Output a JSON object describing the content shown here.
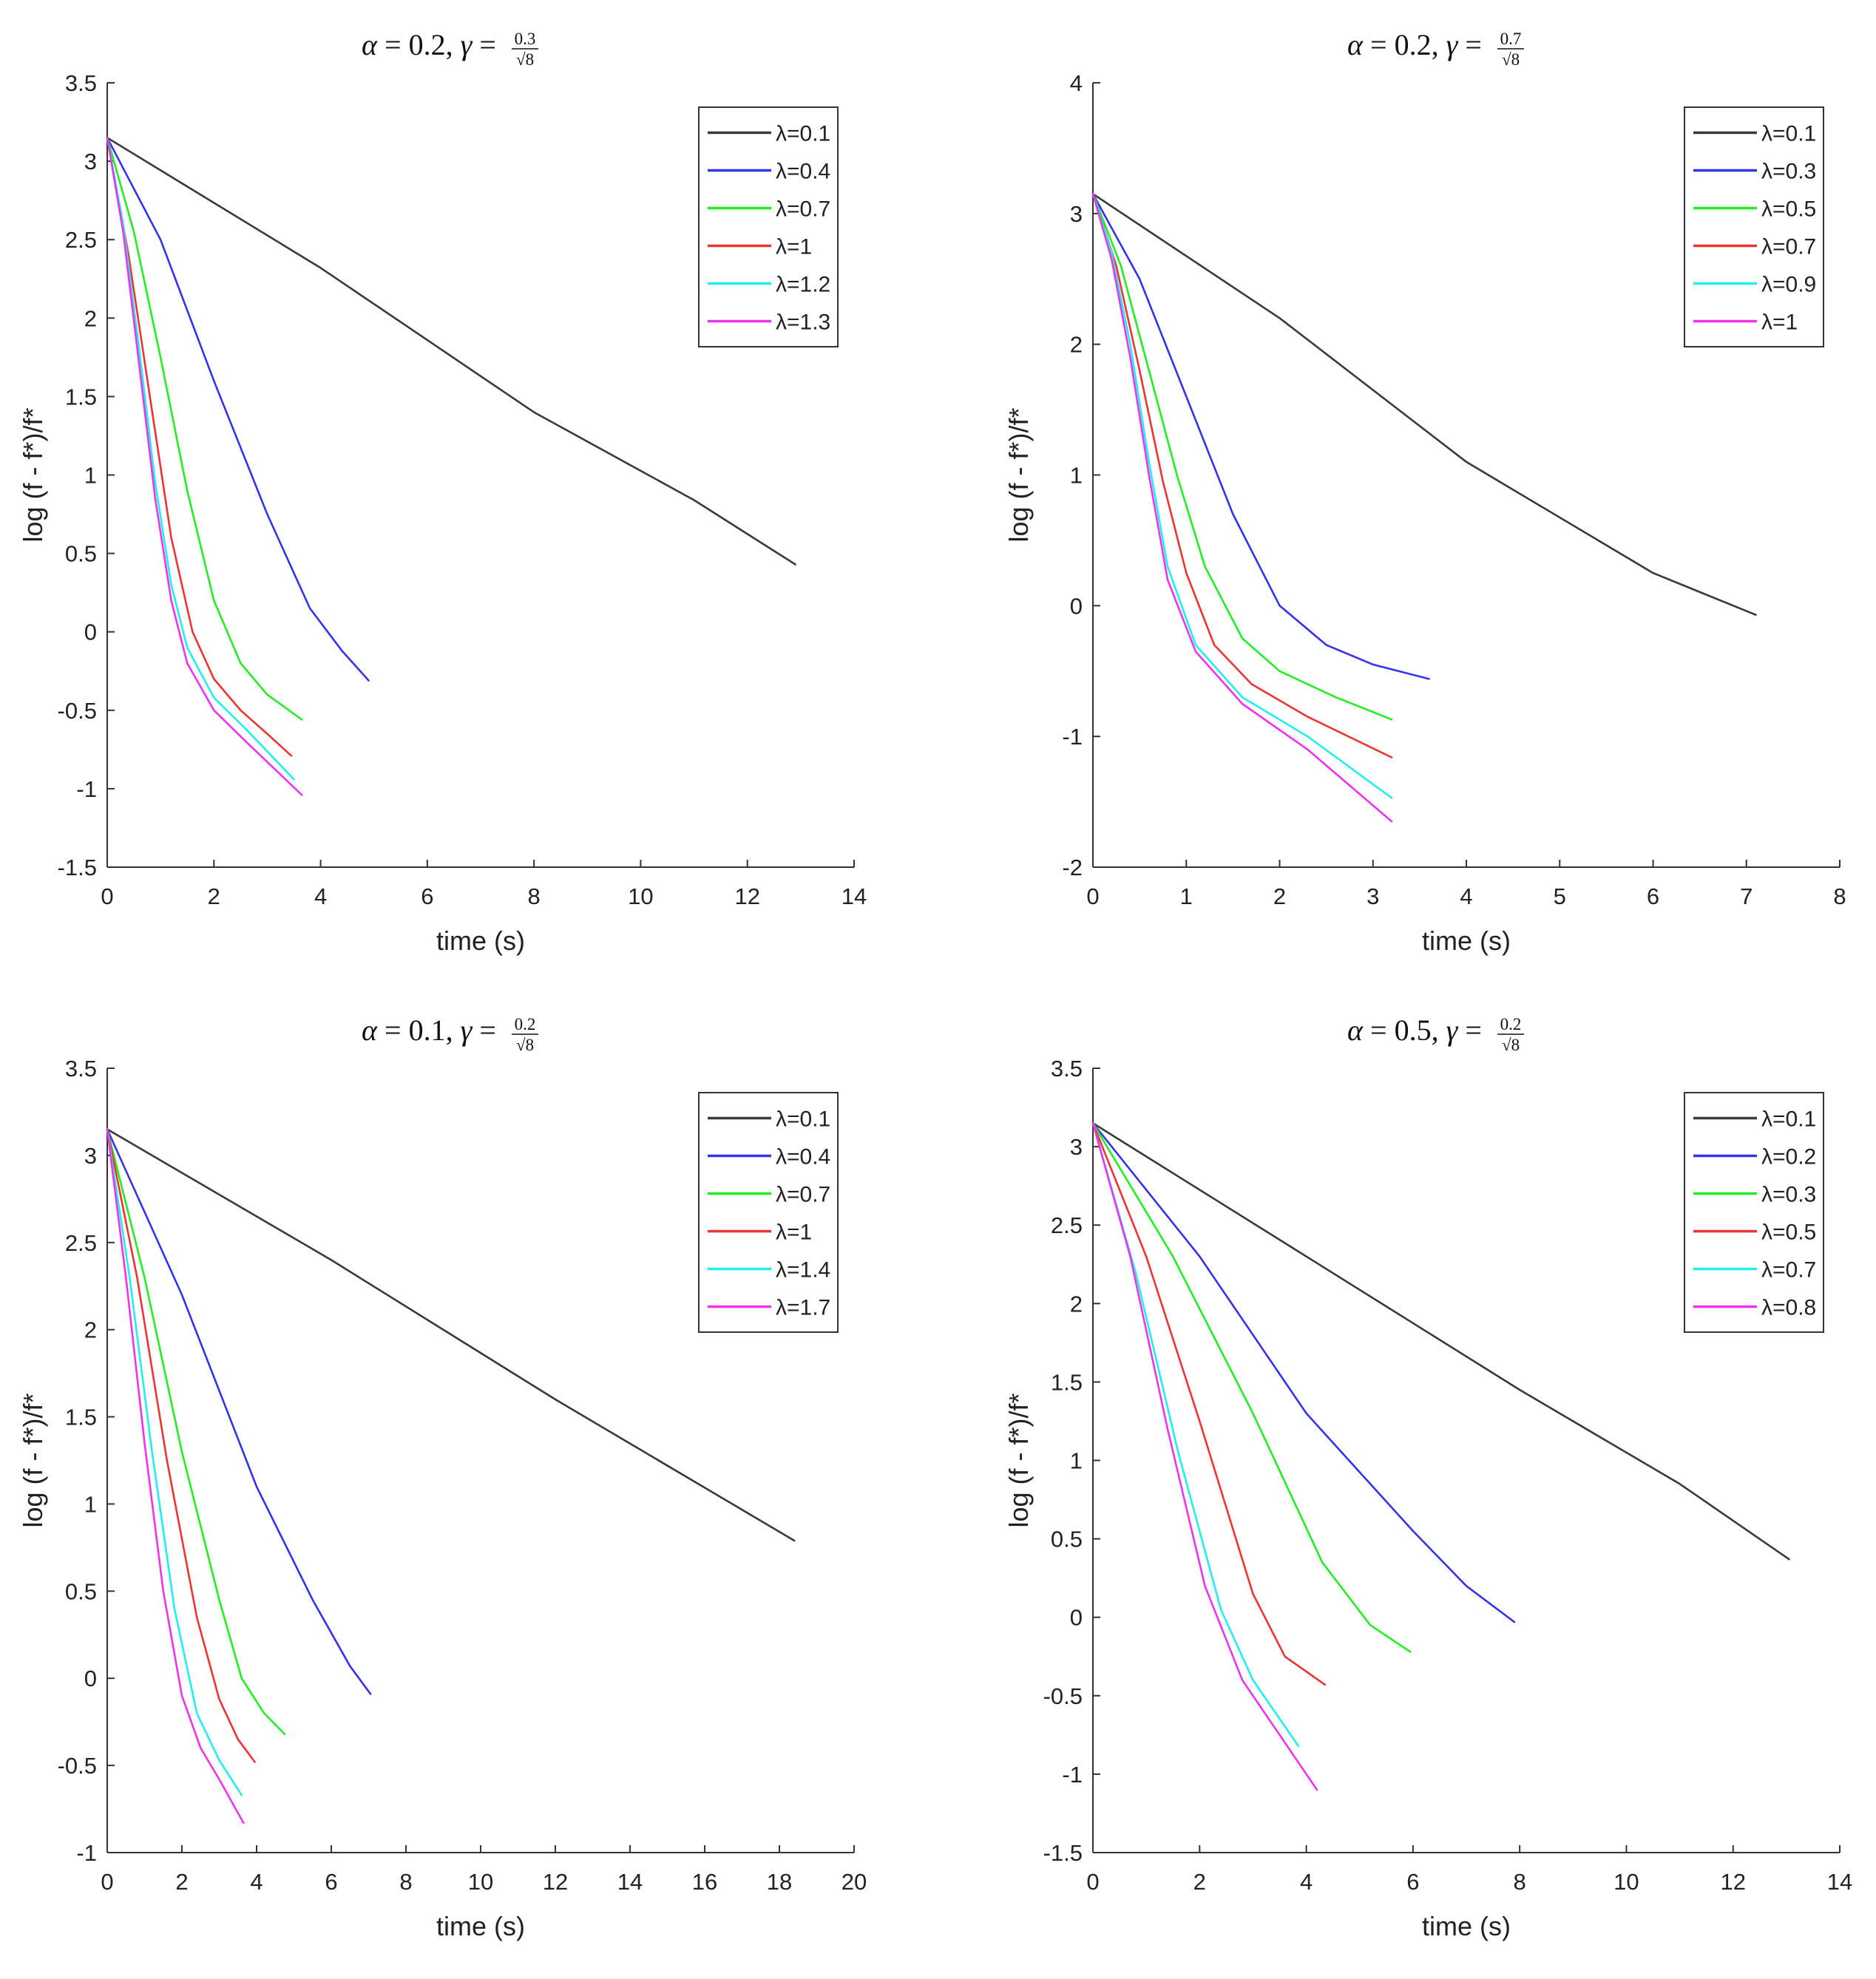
{
  "chart_data": [
    {
      "type": "line",
      "title": {
        "alpha": "0.2",
        "gamma_num": "0.3",
        "gamma_den": "8"
      },
      "xlabel": "time (s)",
      "ylabel": "log (f - f*)/f*",
      "xlim": [
        0,
        14
      ],
      "ylim": [
        -1.5,
        3.5
      ],
      "xticks": [
        0,
        2,
        4,
        6,
        8,
        10,
        12,
        14
      ],
      "xtick_labels": [
        "0",
        "2",
        "4",
        "6",
        "8",
        "10",
        "12",
        "14"
      ],
      "yticks": [
        -1.5,
        -1,
        -0.5,
        0,
        0.5,
        1,
        1.5,
        2,
        2.5,
        3,
        3.5
      ],
      "ytick_labels": [
        "-1.5",
        "-1",
        "-0.5",
        "0",
        "0.5",
        "1",
        "1.5",
        "2",
        "2.5",
        "3",
        "3.5"
      ],
      "legend": "top-right",
      "series": [
        {
          "name": "λ=0.1",
          "color": "#3a3a3a",
          "x": [
            0,
            4,
            8,
            11,
            12.9
          ],
          "y": [
            3.15,
            2.32,
            1.4,
            0.84,
            0.43
          ]
        },
        {
          "name": "λ=0.4",
          "color": "#3333ee",
          "x": [
            0,
            1,
            2,
            3,
            3.8,
            4.4,
            4.9
          ],
          "y": [
            3.15,
            2.5,
            1.6,
            0.75,
            0.15,
            -0.12,
            -0.31
          ]
        },
        {
          "name": "λ=0.7",
          "color": "#22ee22",
          "x": [
            0,
            0.5,
            1,
            1.5,
            2,
            2.5,
            3,
            3.65
          ],
          "y": [
            3.15,
            2.55,
            1.75,
            0.9,
            0.2,
            -0.2,
            -0.4,
            -0.56
          ]
        },
        {
          "name": "λ=1",
          "color": "#ee3333",
          "x": [
            0,
            0.4,
            0.8,
            1.2,
            1.6,
            2,
            2.5,
            3,
            3.45
          ],
          "y": [
            3.15,
            2.4,
            1.5,
            0.6,
            0.0,
            -0.3,
            -0.5,
            -0.65,
            -0.79
          ]
        },
        {
          "name": "λ=1.2",
          "color": "#22eeee",
          "x": [
            0,
            0.3,
            0.6,
            0.9,
            1.2,
            1.5,
            2,
            2.6,
            3.5
          ],
          "y": [
            3.15,
            2.6,
            1.8,
            0.95,
            0.3,
            -0.1,
            -0.42,
            -0.62,
            -0.94
          ]
        },
        {
          "name": "λ=1.3",
          "color": "#ee33ee",
          "x": [
            0,
            0.3,
            0.6,
            0.9,
            1.2,
            1.5,
            2,
            2.6,
            3.65
          ],
          "y": [
            3.15,
            2.55,
            1.7,
            0.85,
            0.2,
            -0.2,
            -0.5,
            -0.7,
            -1.04
          ]
        }
      ]
    },
    {
      "type": "line",
      "title": {
        "alpha": "0.2",
        "gamma_num": "0.7",
        "gamma_den": "8"
      },
      "xlabel": "time (s)",
      "ylabel": "log (f - f*)/f*",
      "xlim": [
        0,
        8
      ],
      "ylim": [
        -2,
        4
      ],
      "xticks": [
        0,
        1,
        2,
        3,
        4,
        5,
        6,
        7,
        8
      ],
      "xtick_labels": [
        "0",
        "1",
        "2",
        "3",
        "4",
        "5",
        "6",
        "7",
        "8"
      ],
      "yticks": [
        -2,
        -1,
        0,
        1,
        2,
        3,
        4
      ],
      "ytick_labels": [
        "-2",
        "-1",
        "0",
        "1",
        "2",
        "3",
        "4"
      ],
      "legend": "top-right",
      "series": [
        {
          "name": "λ=0.1",
          "color": "#3a3a3a",
          "x": [
            0,
            2,
            4,
            6,
            7.1
          ],
          "y": [
            3.15,
            2.2,
            1.1,
            0.25,
            -0.07
          ]
        },
        {
          "name": "λ=0.3",
          "color": "#3333ee",
          "x": [
            0,
            0.5,
            1,
            1.5,
            2,
            2.5,
            3,
            3.6
          ],
          "y": [
            3.15,
            2.5,
            1.6,
            0.7,
            0.0,
            -0.3,
            -0.45,
            -0.56
          ]
        },
        {
          "name": "λ=0.5",
          "color": "#22ee22",
          "x": [
            0,
            0.3,
            0.6,
            0.9,
            1.2,
            1.6,
            2,
            2.6,
            3.2
          ],
          "y": [
            3.15,
            2.6,
            1.8,
            1.0,
            0.3,
            -0.25,
            -0.5,
            -0.7,
            -0.87
          ]
        },
        {
          "name": "λ=0.7",
          "color": "#ee3333",
          "x": [
            0,
            0.25,
            0.5,
            0.75,
            1,
            1.3,
            1.7,
            2.3,
            3.2
          ],
          "y": [
            3.15,
            2.6,
            1.8,
            0.95,
            0.25,
            -0.3,
            -0.6,
            -0.85,
            -1.16
          ]
        },
        {
          "name": "λ=0.9",
          "color": "#22eeee",
          "x": [
            0,
            0.2,
            0.4,
            0.6,
            0.8,
            1.1,
            1.6,
            2.3,
            3.2
          ],
          "y": [
            3.15,
            2.7,
            2.0,
            1.1,
            0.3,
            -0.3,
            -0.7,
            -1.0,
            -1.47
          ]
        },
        {
          "name": "λ=1",
          "color": "#ee33ee",
          "x": [
            0,
            0.2,
            0.4,
            0.6,
            0.8,
            1.1,
            1.6,
            2.3,
            3.2
          ],
          "y": [
            3.15,
            2.65,
            1.9,
            1.0,
            0.2,
            -0.35,
            -0.75,
            -1.1,
            -1.65
          ]
        }
      ]
    },
    {
      "type": "line",
      "title": {
        "alpha": "0.1",
        "gamma_num": "0.2",
        "gamma_den": "8"
      },
      "xlabel": "time (s)",
      "ylabel": "log (f - f*)/f*",
      "xlim": [
        0,
        20
      ],
      "ylim": [
        -1,
        3.5
      ],
      "xticks": [
        0,
        2,
        4,
        6,
        8,
        10,
        12,
        14,
        16,
        18,
        20
      ],
      "xtick_labels": [
        "0",
        "2",
        "4",
        "6",
        "8",
        "10",
        "12",
        "14",
        "16",
        "18",
        "20"
      ],
      "yticks": [
        -1,
        -0.5,
        0,
        0.5,
        1,
        1.5,
        2,
        2.5,
        3,
        3.5
      ],
      "ytick_labels": [
        "-1",
        "-0.5",
        "0",
        "0.5",
        "1",
        "1.5",
        "2",
        "2.5",
        "3",
        "3.5"
      ],
      "legend": "top-right",
      "series": [
        {
          "name": "λ=0.1",
          "color": "#3a3a3a",
          "x": [
            0,
            6,
            12,
            18.4
          ],
          "y": [
            3.15,
            2.4,
            1.6,
            0.79
          ]
        },
        {
          "name": "λ=0.4",
          "color": "#3333ee",
          "x": [
            0,
            2,
            4,
            5.5,
            6.5,
            7.05
          ],
          "y": [
            3.15,
            2.2,
            1.1,
            0.45,
            0.07,
            -0.09
          ]
        },
        {
          "name": "λ=0.7",
          "color": "#22ee22",
          "x": [
            0,
            1,
            2,
            3,
            3.6,
            4.2,
            4.75
          ],
          "y": [
            3.15,
            2.3,
            1.3,
            0.45,
            0.0,
            -0.2,
            -0.32
          ]
        },
        {
          "name": "λ=1",
          "color": "#ee3333",
          "x": [
            0,
            0.8,
            1.6,
            2.4,
            3,
            3.5,
            3.95
          ],
          "y": [
            3.15,
            2.3,
            1.25,
            0.35,
            -0.12,
            -0.35,
            -0.48
          ]
        },
        {
          "name": "λ=1.4",
          "color": "#22eeee",
          "x": [
            0,
            0.6,
            1.2,
            1.8,
            2.4,
            3,
            3.6
          ],
          "y": [
            3.15,
            2.3,
            1.3,
            0.4,
            -0.2,
            -0.47,
            -0.67
          ]
        },
        {
          "name": "λ=1.7",
          "color": "#ee33ee",
          "x": [
            0,
            0.5,
            1,
            1.5,
            2,
            2.5,
            3,
            3.65
          ],
          "y": [
            3.15,
            2.3,
            1.35,
            0.5,
            -0.1,
            -0.4,
            -0.58,
            -0.83
          ]
        }
      ]
    },
    {
      "type": "line",
      "title": {
        "alpha": "0.5",
        "gamma_num": "0.2",
        "gamma_den": "8"
      },
      "xlabel": "time (s)",
      "ylabel": "log (f - f*)/f*",
      "xlim": [
        0,
        14
      ],
      "ylim": [
        -1.5,
        3.5
      ],
      "xticks": [
        0,
        2,
        4,
        6,
        8,
        10,
        12,
        14
      ],
      "xtick_labels": [
        "0",
        "2",
        "4",
        "6",
        "8",
        "10",
        "12",
        "14"
      ],
      "yticks": [
        -1.5,
        -1,
        -0.5,
        0,
        0.5,
        1,
        1.5,
        2,
        2.5,
        3,
        3.5
      ],
      "ytick_labels": [
        "-1.5",
        "-1",
        "-0.5",
        "0",
        "0.5",
        "1",
        "1.5",
        "2",
        "2.5",
        "3",
        "3.5"
      ],
      "legend": "top-right",
      "series": [
        {
          "name": "λ=0.1",
          "color": "#3a3a3a",
          "x": [
            0,
            4,
            8,
            11,
            13.05
          ],
          "y": [
            3.15,
            2.3,
            1.45,
            0.85,
            0.37
          ]
        },
        {
          "name": "λ=0.2",
          "color": "#3333ee",
          "x": [
            0,
            2,
            4,
            6,
            7,
            7.9
          ],
          "y": [
            3.15,
            2.3,
            1.3,
            0.55,
            0.2,
            -0.03
          ]
        },
        {
          "name": "λ=0.3",
          "color": "#22ee22",
          "x": [
            0,
            1.5,
            3,
            4.3,
            5.2,
            5.95
          ],
          "y": [
            3.15,
            2.3,
            1.3,
            0.35,
            -0.05,
            -0.22
          ]
        },
        {
          "name": "λ=0.5",
          "color": "#ee3333",
          "x": [
            0,
            1,
            2,
            3,
            3.6,
            4.35
          ],
          "y": [
            3.15,
            2.3,
            1.25,
            0.15,
            -0.25,
            -0.43
          ]
        },
        {
          "name": "λ=0.7",
          "color": "#22eeee",
          "x": [
            0,
            0.8,
            1.6,
            2.4,
            3,
            3.85
          ],
          "y": [
            3.15,
            2.2,
            1.05,
            0.05,
            -0.4,
            -0.82
          ]
        },
        {
          "name": "λ=0.8",
          "color": "#ee33ee",
          "x": [
            0,
            0.7,
            1.4,
            2.1,
            2.8,
            3.4,
            4.2
          ],
          "y": [
            3.15,
            2.3,
            1.2,
            0.2,
            -0.4,
            -0.7,
            -1.1
          ]
        }
      ]
    }
  ]
}
